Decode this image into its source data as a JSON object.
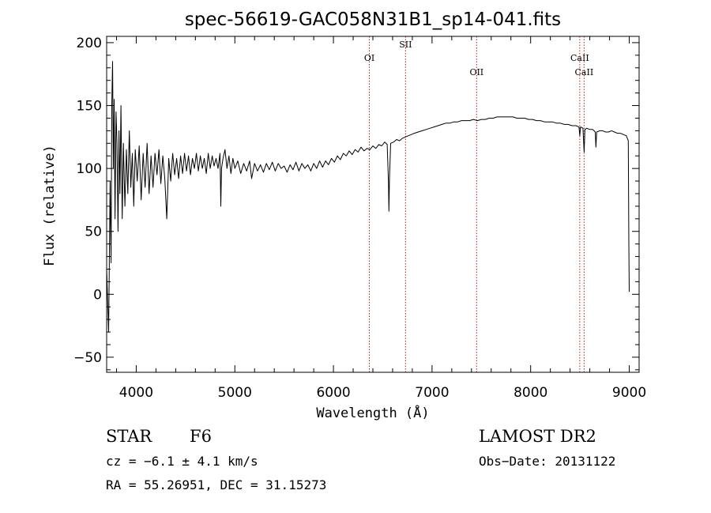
{
  "chart_data": {
    "type": "line",
    "title": "spec-56619-GAC058N31B1_sp14-041.fits",
    "xlabel": "Wavelength (Å)",
    "ylabel": "Flux (relative)",
    "xlim": [
      3700,
      9100
    ],
    "ylim": [
      -62,
      205
    ],
    "xticks": [
      4000,
      5000,
      6000,
      7000,
      8000,
      9000
    ],
    "yticks": [
      -50,
      0,
      50,
      100,
      150,
      200
    ],
    "grid": false,
    "series": [
      {
        "points": [
          [
            3700,
            20
          ],
          [
            3720,
            -30
          ],
          [
            3735,
            90
          ],
          [
            3745,
            25
          ],
          [
            3752,
            150
          ],
          [
            3760,
            185
          ],
          [
            3768,
            100
          ],
          [
            3776,
            155
          ],
          [
            3785,
            60
          ],
          [
            3795,
            145
          ],
          [
            3805,
            120
          ],
          [
            3815,
            50
          ],
          [
            3825,
            130
          ],
          [
            3835,
            80
          ],
          [
            3845,
            150
          ],
          [
            3858,
            60
          ],
          [
            3870,
            120
          ],
          [
            3885,
            70
          ],
          [
            3900,
            115
          ],
          [
            3915,
            80
          ],
          [
            3930,
            130
          ],
          [
            3945,
            85
          ],
          [
            3960,
            112
          ],
          [
            3975,
            70
          ],
          [
            3990,
            115
          ],
          [
            4010,
            90
          ],
          [
            4030,
            118
          ],
          [
            4050,
            75
          ],
          [
            4070,
            112
          ],
          [
            4090,
            85
          ],
          [
            4110,
            120
          ],
          [
            4130,
            80
          ],
          [
            4150,
            110
          ],
          [
            4170,
            85
          ],
          [
            4190,
            112
          ],
          [
            4210,
            95
          ],
          [
            4230,
            115
          ],
          [
            4250,
            88
          ],
          [
            4270,
            110
          ],
          [
            4290,
            92
          ],
          [
            4310,
            60
          ],
          [
            4330,
            108
          ],
          [
            4350,
            90
          ],
          [
            4370,
            112
          ],
          [
            4390,
            95
          ],
          [
            4410,
            108
          ],
          [
            4430,
            92
          ],
          [
            4450,
            110
          ],
          [
            4470,
            96
          ],
          [
            4490,
            112
          ],
          [
            4510,
            98
          ],
          [
            4530,
            110
          ],
          [
            4550,
            95
          ],
          [
            4570,
            108
          ],
          [
            4590,
            100
          ],
          [
            4610,
            112
          ],
          [
            4630,
            98
          ],
          [
            4650,
            110
          ],
          [
            4670,
            100
          ],
          [
            4690,
            108
          ],
          [
            4710,
            96
          ],
          [
            4730,
            112
          ],
          [
            4750,
            100
          ],
          [
            4770,
            110
          ],
          [
            4790,
            102
          ],
          [
            4810,
            108
          ],
          [
            4830,
            100
          ],
          [
            4850,
            112
          ],
          [
            4858,
            70
          ],
          [
            4865,
            100
          ],
          [
            4880,
            108
          ],
          [
            4900,
            115
          ],
          [
            4920,
            100
          ],
          [
            4940,
            110
          ],
          [
            4960,
            96
          ],
          [
            4980,
            108
          ],
          [
            5000,
            100
          ],
          [
            5030,
            106
          ],
          [
            5060,
            96
          ],
          [
            5090,
            104
          ],
          [
            5120,
            98
          ],
          [
            5150,
            106
          ],
          [
            5170,
            92
          ],
          [
            5200,
            104
          ],
          [
            5230,
            98
          ],
          [
            5260,
            103
          ],
          [
            5290,
            97
          ],
          [
            5320,
            104
          ],
          [
            5350,
            99
          ],
          [
            5380,
            105
          ],
          [
            5410,
            98
          ],
          [
            5440,
            104
          ],
          [
            5470,
            100
          ],
          [
            5500,
            102
          ],
          [
            5530,
            97
          ],
          [
            5560,
            103
          ],
          [
            5590,
            99
          ],
          [
            5620,
            105
          ],
          [
            5650,
            98
          ],
          [
            5680,
            104
          ],
          [
            5710,
            100
          ],
          [
            5740,
            103
          ],
          [
            5770,
            98
          ],
          [
            5800,
            104
          ],
          [
            5830,
            100
          ],
          [
            5860,
            106
          ],
          [
            5890,
            101
          ],
          [
            5920,
            106
          ],
          [
            5950,
            103
          ],
          [
            5980,
            108
          ],
          [
            6010,
            105
          ],
          [
            6040,
            110
          ],
          [
            6070,
            107
          ],
          [
            6100,
            112
          ],
          [
            6130,
            110
          ],
          [
            6160,
            114
          ],
          [
            6190,
            111
          ],
          [
            6220,
            115
          ],
          [
            6250,
            113
          ],
          [
            6280,
            117
          ],
          [
            6310,
            114
          ],
          [
            6340,
            116
          ],
          [
            6370,
            115
          ],
          [
            6400,
            118
          ],
          [
            6430,
            116
          ],
          [
            6460,
            119
          ],
          [
            6490,
            118
          ],
          [
            6520,
            121
          ],
          [
            6545,
            119
          ],
          [
            6558,
            90
          ],
          [
            6563,
            66
          ],
          [
            6568,
            92
          ],
          [
            6580,
            120
          ],
          [
            6610,
            121
          ],
          [
            6640,
            123
          ],
          [
            6670,
            122
          ],
          [
            6700,
            124
          ],
          [
            6730,
            125
          ],
          [
            6760,
            126
          ],
          [
            6790,
            127
          ],
          [
            6820,
            128
          ],
          [
            6860,
            129
          ],
          [
            6900,
            130
          ],
          [
            6940,
            131
          ],
          [
            6980,
            132
          ],
          [
            7020,
            133
          ],
          [
            7060,
            134
          ],
          [
            7100,
            135
          ],
          [
            7140,
            136
          ],
          [
            7180,
            136
          ],
          [
            7220,
            137
          ],
          [
            7260,
            137
          ],
          [
            7300,
            138
          ],
          [
            7340,
            138
          ],
          [
            7380,
            138
          ],
          [
            7420,
            139
          ],
          [
            7460,
            138
          ],
          [
            7500,
            139
          ],
          [
            7540,
            139
          ],
          [
            7580,
            140
          ],
          [
            7620,
            140
          ],
          [
            7660,
            141
          ],
          [
            7700,
            141
          ],
          [
            7740,
            141
          ],
          [
            7780,
            141
          ],
          [
            7820,
            141
          ],
          [
            7860,
            140
          ],
          [
            7900,
            140
          ],
          [
            7940,
            140
          ],
          [
            7980,
            139
          ],
          [
            8020,
            139
          ],
          [
            8060,
            138
          ],
          [
            8100,
            138
          ],
          [
            8140,
            137
          ],
          [
            8180,
            137
          ],
          [
            8220,
            137
          ],
          [
            8260,
            136
          ],
          [
            8300,
            136
          ],
          [
            8340,
            135
          ],
          [
            8380,
            135
          ],
          [
            8420,
            134
          ],
          [
            8460,
            134
          ],
          [
            8490,
            133
          ],
          [
            8498,
            126
          ],
          [
            8506,
            133
          ],
          [
            8530,
            132
          ],
          [
            8542,
            113
          ],
          [
            8550,
            131
          ],
          [
            8570,
            132
          ],
          [
            8600,
            131
          ],
          [
            8630,
            131
          ],
          [
            8655,
            129
          ],
          [
            8662,
            117
          ],
          [
            8670,
            129
          ],
          [
            8700,
            130
          ],
          [
            8730,
            130
          ],
          [
            8760,
            129
          ],
          [
            8790,
            129
          ],
          [
            8820,
            130
          ],
          [
            8850,
            129
          ],
          [
            8880,
            128
          ],
          [
            8910,
            128
          ],
          [
            8940,
            127
          ],
          [
            8970,
            126
          ],
          [
            8990,
            122
          ],
          [
            8996,
            40
          ],
          [
            9000,
            2
          ]
        ]
      }
    ],
    "lines": [
      {
        "label": "OI",
        "x": 6364
      },
      {
        "label": "SII",
        "x": 6731
      },
      {
        "label": "OII",
        "x": 7452
      },
      {
        "label": "CaII",
        "x": 8498
      },
      {
        "label": "CaII",
        "x": 8542
      }
    ],
    "info": {
      "class": "STAR",
      "subclass": "F6",
      "cz": "cz = −6.1 ± 4.1 km/s",
      "coords": "RA =  55.26951, DEC =  31.15273",
      "survey": "LAMOST DR2",
      "obsdate": "Obs−Date: 20131122"
    },
    "colors": {
      "axes": "#000000",
      "spectrum": "#000000",
      "line_marker": "#b22222"
    }
  }
}
